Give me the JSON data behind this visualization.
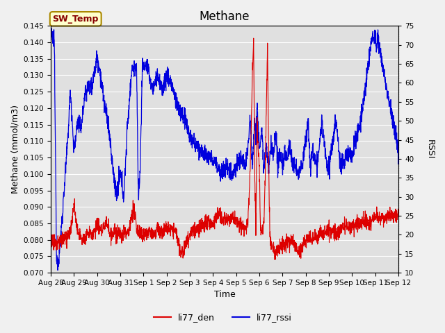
{
  "title": "Methane",
  "ylabel_left": "Methane (mmol/m3)",
  "ylabel_right": "RSSI",
  "xlabel": "Time",
  "ylim_left": [
    0.07,
    0.145
  ],
  "ylim_right": [
    10,
    75
  ],
  "line_color_red": "#dd0000",
  "line_color_blue": "#0000dd",
  "legend_label_red": "li77_den",
  "legend_label_blue": "li77_rssi",
  "annotation_text": "SW_Temp",
  "annotation_bg": "#ffffcc",
  "annotation_border": "#aa8800",
  "annotation_text_color": "#880000",
  "xtick_labels": [
    "Aug 28",
    "Aug 29",
    "Aug 30",
    "Aug 31",
    "Sep 1",
    "Sep 2",
    "Sep 3",
    "Sep 4",
    "Sep 5",
    "Sep 6",
    "Sep 7",
    "Sep 8",
    "Sep 9",
    "Sep 10",
    "Sep 11",
    "Sep 12"
  ],
  "yticks_left": [
    0.07,
    0.075,
    0.08,
    0.085,
    0.09,
    0.095,
    0.1,
    0.105,
    0.11,
    0.115,
    0.12,
    0.125,
    0.13,
    0.135,
    0.14,
    0.145
  ],
  "yticks_right": [
    10,
    15,
    20,
    25,
    30,
    35,
    40,
    45,
    50,
    55,
    60,
    65,
    70,
    75
  ],
  "title_fontsize": 12,
  "axis_fontsize": 9,
  "tick_fontsize": 7.5,
  "legend_fontsize": 9
}
